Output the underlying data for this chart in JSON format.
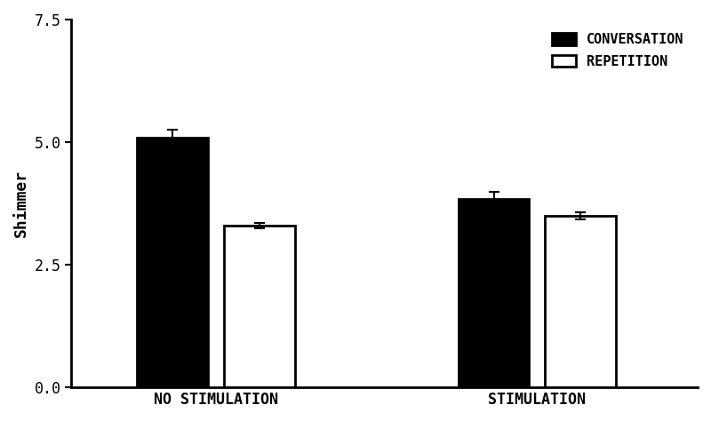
{
  "groups": [
    "NO STIMULATION",
    "STIMULATION"
  ],
  "series": [
    "CONVERSATION",
    "REPETITION"
  ],
  "values": [
    [
      5.1,
      3.3
    ],
    [
      3.85,
      3.5
    ]
  ],
  "errors": [
    [
      0.15,
      0.06
    ],
    [
      0.13,
      0.07
    ]
  ],
  "bar_colors": [
    "#000000",
    "#ffffff"
  ],
  "bar_edgecolors": [
    "#000000",
    "#000000"
  ],
  "ylabel": "Shimmer",
  "ylim": [
    0.0,
    7.5
  ],
  "yticks": [
    0.0,
    2.5,
    5.0,
    7.5
  ],
  "background_color": "#ffffff",
  "bar_width": 0.22,
  "group_centers": [
    1.0,
    2.0
  ],
  "bar_gap": 0.05,
  "legend_labels": [
    "CONVERSATION",
    "REPETITION"
  ],
  "legend_colors": [
    "#000000",
    "#ffffff"
  ],
  "tick_label_fontsize": 12,
  "axis_label_fontsize": 13,
  "legend_fontsize": 11
}
